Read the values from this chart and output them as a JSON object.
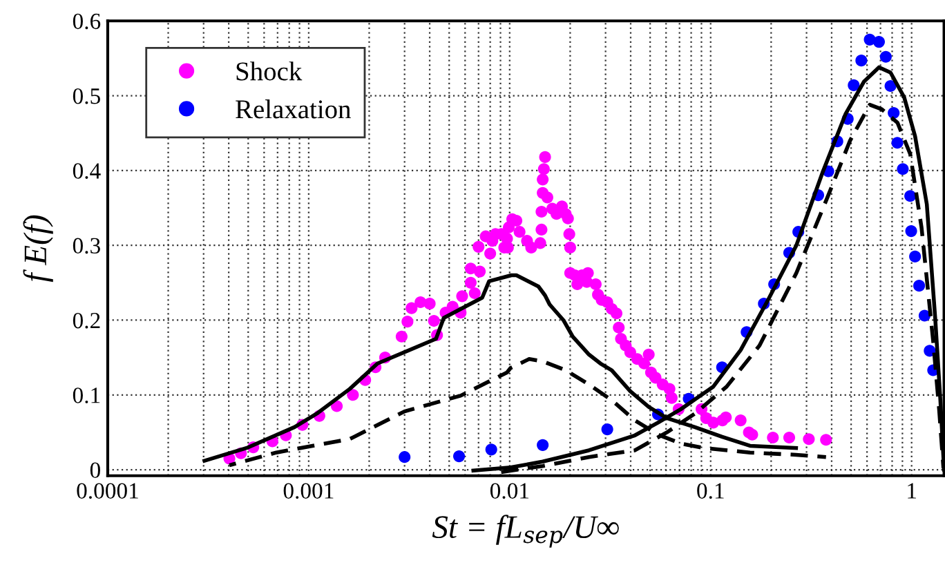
{
  "chart_data": {
    "type": "scatter",
    "xlabel": "St = fL$_{sep}$/U∞",
    "ylabel": "f E(f)",
    "log": "x",
    "xlim": [
      0.0001,
      1.45
    ],
    "xticks": [
      0.0001,
      0.001,
      0.01,
      0.1,
      1
    ],
    "ylim": [
      -0.008,
      0.6
    ],
    "yticks": [
      0,
      0.1,
      0.2,
      0.3,
      0.4,
      0.5,
      0.6
    ],
    "grid": true,
    "legend": "top left",
    "series": [
      {
        "name": "Shock",
        "marker": "circle",
        "color": "#ff00ff",
        "x": [
          0.000403,
          0.00046,
          0.00053,
          0.00066,
          0.00077,
          0.00093,
          0.00113,
          0.00138,
          0.00166,
          0.00191,
          0.00215,
          0.0024,
          0.0029,
          0.0031,
          0.00325,
          0.0036,
          0.004,
          0.0042,
          0.00435,
          0.0048,
          0.0052,
          0.0057,
          0.0058,
          0.0064,
          0.0064,
          0.0067,
          0.0071,
          0.007,
          0.0076,
          0.008,
          0.0085,
          0.0094,
          0.0097,
          0.0099,
          0.0103,
          0.0082,
          0.0091,
          0.0098,
          0.0108,
          0.0112,
          0.0122,
          0.0128,
          0.0142,
          0.0144,
          0.0144,
          0.0146,
          0.0146,
          0.0148,
          0.015,
          0.0154,
          0.0163,
          0.0171,
          0.0182,
          0.019,
          0.0195,
          0.0198,
          0.02,
          0.02,
          0.0211,
          0.0217,
          0.0229,
          0.0242,
          0.0245,
          0.0268,
          0.0275,
          0.0287,
          0.0306,
          0.0322,
          0.034,
          0.0349,
          0.0358,
          0.0378,
          0.0398,
          0.0431,
          0.0467,
          0.0492,
          0.0505,
          0.0532,
          0.0577,
          0.0624,
          0.064,
          0.0693,
          0.0901,
          0.095,
          0.1031,
          0.1145,
          0.119,
          0.141,
          0.155,
          0.161,
          0.204,
          0.246,
          0.308,
          0.375
        ],
        "values": [
          0.015,
          0.022,
          0.03,
          0.038,
          0.046,
          0.06,
          0.072,
          0.085,
          0.1,
          0.12,
          0.137,
          0.15,
          0.178,
          0.198,
          0.216,
          0.224,
          0.222,
          0.199,
          0.18,
          0.21,
          0.218,
          0.21,
          0.232,
          0.25,
          0.269,
          0.236,
          0.265,
          0.298,
          0.312,
          0.289,
          0.315,
          0.297,
          0.309,
          0.324,
          0.335,
          0.306,
          0.315,
          0.297,
          0.333,
          0.318,
          0.306,
          0.297,
          0.303,
          0.321,
          0.345,
          0.37,
          0.388,
          0.402,
          0.418,
          0.364,
          0.349,
          0.342,
          0.352,
          0.342,
          0.336,
          0.315,
          0.297,
          0.263,
          0.26,
          0.248,
          0.26,
          0.251,
          0.263,
          0.248,
          0.234,
          0.227,
          0.224,
          0.215,
          0.209,
          0.19,
          0.175,
          0.166,
          0.157,
          0.148,
          0.142,
          0.154,
          0.13,
          0.123,
          0.114,
          0.108,
          0.096,
          0.081,
          0.081,
          0.069,
          0.063,
          0.066,
          0.07,
          0.066,
          0.05,
          0.047,
          0.043,
          0.043,
          0.041,
          0.04
        ]
      },
      {
        "name": "Relaxation",
        "marker": "circle",
        "color": "#0000ff",
        "x": [
          0.003,
          0.0056,
          0.0081,
          0.0146,
          0.0306,
          0.0547,
          0.0778,
          0.114,
          0.151,
          0.184,
          0.207,
          0.246,
          0.273,
          0.343,
          0.385,
          0.427,
          0.481,
          0.515,
          0.562,
          0.619,
          0.688,
          0.744,
          0.785,
          0.814,
          0.849,
          0.904,
          0.984,
          0.995,
          1.04,
          1.09,
          1.16,
          1.23,
          1.28
        ],
        "values": [
          0.017,
          0.018,
          0.027,
          0.033,
          0.054,
          0.074,
          0.095,
          0.137,
          0.184,
          0.222,
          0.248,
          0.29,
          0.318,
          0.367,
          0.399,
          0.439,
          0.469,
          0.514,
          0.547,
          0.575,
          0.572,
          0.552,
          0.513,
          0.477,
          0.437,
          0.402,
          0.366,
          0.319,
          0.285,
          0.246,
          0.206,
          0.159,
          0.133
        ]
      },
      {
        "type": "line",
        "line_style": "solid",
        "color": "#000000",
        "x": [
          0.000303,
          0.00049,
          0.00085,
          0.00111,
          0.0016,
          0.0022,
          0.0043,
          0.0047,
          0.0073,
          0.0079,
          0.0102,
          0.0108,
          0.0139,
          0.015,
          0.0158,
          0.0185,
          0.0206,
          0.0248,
          0.0283,
          0.0322,
          0.0398,
          0.0492,
          0.0606,
          0.0834,
          0.114,
          0.157,
          0.266
        ],
        "values": [
          0.012,
          0.029,
          0.057,
          0.076,
          0.108,
          0.142,
          0.175,
          0.203,
          0.23,
          0.252,
          0.26,
          0.26,
          0.245,
          0.233,
          0.221,
          0.2,
          0.178,
          0.154,
          0.142,
          0.133,
          0.105,
          0.084,
          0.069,
          0.057,
          0.044,
          0.032,
          0.029
        ]
      },
      {
        "type": "line",
        "line_style": "dashed",
        "color": "#000000",
        "x": [
          0.000403,
          0.00069,
          0.0016,
          0.003,
          0.0057,
          0.0097,
          0.0101,
          0.0125,
          0.0146,
          0.019,
          0.0248,
          0.0322,
          0.042,
          0.0547,
          0.0711,
          0.0925,
          0.157,
          0.266,
          0.375
        ],
        "values": [
          0.006,
          0.023,
          0.041,
          0.078,
          0.099,
          0.13,
          0.136,
          0.148,
          0.145,
          0.133,
          0.114,
          0.093,
          0.066,
          0.047,
          0.035,
          0.029,
          0.023,
          0.02,
          0.017
        ]
      },
      {
        "type": "line",
        "line_style": "solid",
        "color": "#000000",
        "x": [
          0.0066,
          0.0101,
          0.0146,
          0.0248,
          0.042,
          0.0547,
          0.0711,
          0.103,
          0.141,
          0.193,
          0.267,
          0.36,
          0.47,
          0.58,
          0.688,
          0.785,
          0.918,
          1.04,
          1.19,
          1.31,
          1.39,
          1.45
        ],
        "values": [
          -0.001,
          0.003,
          0.011,
          0.026,
          0.046,
          0.063,
          0.081,
          0.111,
          0.16,
          0.227,
          0.3,
          0.397,
          0.476,
          0.519,
          0.538,
          0.531,
          0.498,
          0.446,
          0.355,
          0.203,
          0.093,
          0.0
        ]
      },
      {
        "type": "line",
        "line_style": "dashed",
        "color": "#000000",
        "x": [
          0.0086,
          0.0146,
          0.0248,
          0.042,
          0.0606,
          0.0834,
          0.12,
          0.175,
          0.267,
          0.385,
          0.494,
          0.619,
          0.71,
          0.85,
          0.984,
          1.12,
          1.28,
          1.37,
          1.44
        ],
        "values": [
          -0.004,
          0.005,
          0.017,
          0.026,
          0.05,
          0.075,
          0.111,
          0.166,
          0.263,
          0.367,
          0.44,
          0.488,
          0.482,
          0.464,
          0.422,
          0.324,
          0.172,
          0.081,
          0.002
        ]
      }
    ]
  }
}
